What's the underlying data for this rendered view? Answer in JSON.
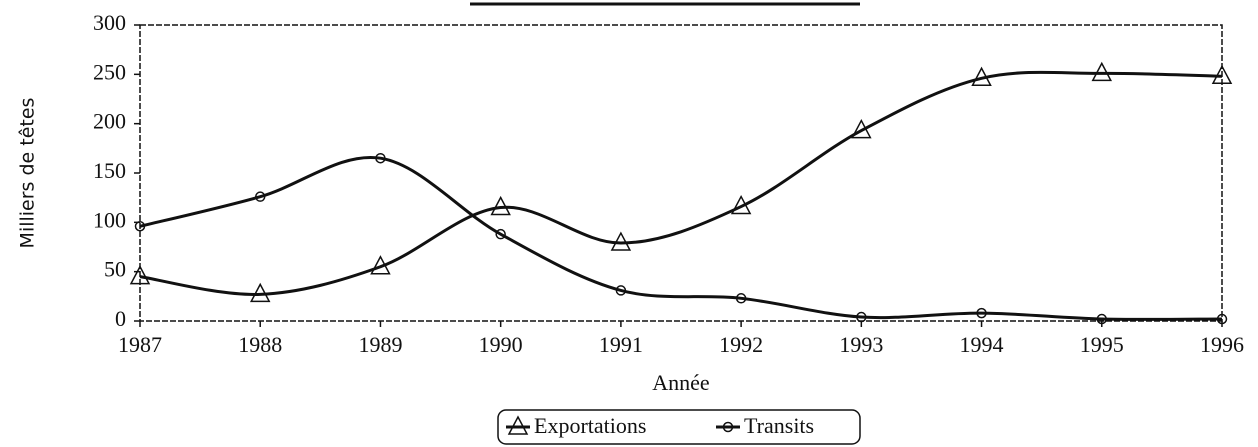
{
  "chart_data": {
    "type": "line",
    "x": [
      1987,
      1988,
      1989,
      1990,
      1991,
      1992,
      1993,
      1994,
      1995,
      1996
    ],
    "series": [
      {
        "name": "Exportations",
        "color": "#111111",
        "marker": "triangle",
        "values": [
          45,
          27,
          55,
          115,
          79,
          116,
          193,
          246,
          251,
          248
        ]
      },
      {
        "name": "Transits",
        "color": "#111111",
        "marker": "circle",
        "values": [
          96,
          126,
          165,
          88,
          31,
          23,
          4,
          8,
          2,
          2
        ]
      }
    ],
    "xlabel": "Année",
    "ylabel": "Milliers de têtes",
    "xlim": [
      1987,
      1996
    ],
    "xticks": [
      1987,
      1988,
      1989,
      1990,
      1991,
      1992,
      1993,
      1994,
      1995,
      1996
    ],
    "ylim": [
      0,
      300
    ],
    "yticks": [
      0,
      50,
      100,
      150,
      200,
      250,
      300
    ],
    "legend": "bottom"
  }
}
